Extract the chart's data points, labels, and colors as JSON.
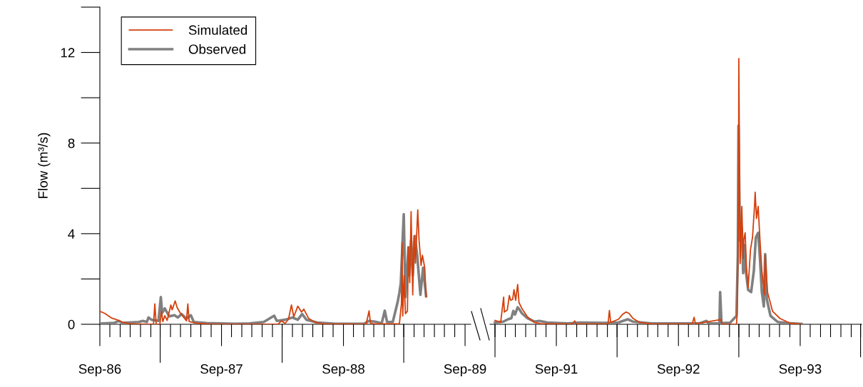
{
  "chart_data": [
    {
      "type": "line",
      "ylabel": "Flow (m³/s)",
      "legend": "top left",
      "grid": false,
      "marker": "none",
      "line_style": "solid",
      "xlim": [
        "1986-09-01",
        "1989-09-18"
      ],
      "ylim": [
        0,
        14
      ],
      "yticks": [
        0,
        4,
        8,
        12
      ],
      "xticks": [
        {
          "value": "1986-09-01",
          "label": "Sep-86"
        },
        {
          "value": "1987-09-01",
          "label": "Sep-87"
        },
        {
          "value": "1988-09-01",
          "label": "Sep-88"
        },
        {
          "value": "1989-09-01",
          "label": "Sep-89"
        }
      ],
      "series": [
        {
          "name": "Simulated",
          "color": "#d4400c",
          "x": [
            "1986-09-01",
            "1986-09-16",
            "1986-10-07",
            "1986-10-19",
            "1986-11-10",
            "1986-12-02",
            "1987-01-22",
            "1987-02-09",
            "1987-02-13",
            "1987-02-17",
            "1987-02-28",
            "1987-03-05",
            "1987-03-09",
            "1987-03-15",
            "1987-03-22",
            "1987-04-02",
            "1987-04-06",
            "1987-04-15",
            "1987-04-21",
            "1987-05-01",
            "1987-05-19",
            "1987-05-23",
            "1987-05-27",
            "1987-06-20",
            "1987-08-02",
            "1988-01-28",
            "1988-02-18",
            "1988-02-28",
            "1988-03-10",
            "1988-03-20",
            "1988-03-29",
            "1988-04-05",
            "1988-04-17",
            "1988-04-28",
            "1988-05-05",
            "1988-05-19",
            "1988-06-08",
            "1988-07-02",
            "1988-11-08",
            "1988-11-17",
            "1988-11-21",
            "1988-11-29",
            "1989-02-16",
            "1989-02-22",
            "1989-02-24",
            "1989-02-26",
            "1989-03-02",
            "1989-03-06",
            "1989-03-12",
            "1989-03-15",
            "1989-03-19",
            "1989-03-23",
            "1989-03-28",
            "1989-04-01",
            "1989-04-05",
            "1989-04-12",
            "1989-04-16",
            "1989-04-22",
            "1989-04-26",
            "1989-05-03",
            "1989-05-07"
          ],
          "values": [
            0.57,
            0.48,
            0.27,
            0.22,
            0.08,
            0.02,
            0,
            0,
            0.9,
            0.01,
            0,
            0.57,
            0.12,
            0.38,
            0.17,
            0.85,
            0.64,
            1.03,
            0.74,
            0.48,
            0.15,
            0.9,
            0.12,
            0.04,
            0,
            0,
            0.01,
            0.15,
            0.04,
            0.22,
            0.85,
            0.33,
            0.8,
            0.54,
            0.67,
            0.27,
            0.08,
            0.02,
            0,
            0.59,
            0.06,
            0.02,
            0.03,
            0.9,
            3.6,
            0.37,
            2.15,
            0.47,
            0.58,
            3.4,
            1.84,
            4.97,
            1.3,
            3.9,
            2.7,
            5.05,
            3.7,
            2.6,
            3.05,
            2.5,
            1.2
          ]
        },
        {
          "name": "Observed",
          "color": "#808080",
          "x": [
            "1986-09-01",
            "1986-10-13",
            "1986-10-28",
            "1986-11-08",
            "1986-12-27",
            "1987-01-08",
            "1987-01-20",
            "1987-01-25",
            "1987-02-03",
            "1987-02-24",
            "1987-03-03",
            "1987-03-07",
            "1987-03-15",
            "1987-03-28",
            "1987-04-13",
            "1987-04-23",
            "1987-05-04",
            "1987-05-19",
            "1987-06-01",
            "1987-06-10",
            "1987-07-18",
            "1987-10-12",
            "1987-11-24",
            "1988-01-06",
            "1988-02-06",
            "1988-02-14",
            "1988-03-10",
            "1988-04-01",
            "1988-04-17",
            "1988-04-30",
            "1988-05-13",
            "1988-06-14",
            "1988-08-08",
            "1988-11-02",
            "1988-11-17",
            "1988-12-04",
            "1988-12-25",
            "1989-01-03",
            "1989-01-10",
            "1989-01-27",
            "1989-02-11",
            "1989-02-16",
            "1989-02-20",
            "1989-03-01",
            "1989-03-06",
            "1989-03-15",
            "1989-03-17",
            "1989-03-23",
            "1989-03-28",
            "1989-04-03",
            "1989-04-10",
            "1989-04-20",
            "1989-04-28",
            "1989-05-07"
          ],
          "values": [
            0.03,
            0.06,
            0.15,
            0.06,
            0.1,
            0.15,
            0.1,
            0.3,
            0.2,
            0.15,
            1.2,
            0.5,
            0.7,
            0.35,
            0.4,
            0.3,
            0.45,
            0.25,
            0.4,
            0.1,
            0.05,
            0.02,
            0.04,
            0.1,
            0.38,
            0.15,
            0.2,
            0.3,
            0.2,
            0.45,
            0.2,
            0.08,
            0.02,
            0.02,
            0.15,
            0.12,
            0.05,
            0.6,
            0.1,
            0.1,
            1.0,
            1.4,
            1.8,
            4.86,
            1.2,
            3.4,
            2.15,
            3.7,
            2.15,
            3.9,
            3.1,
            1.3,
            2.5,
            1.25
          ]
        }
      ]
    },
    {
      "type": "line",
      "tick_labels": "x",
      "legend": false,
      "grid": false,
      "marker": "none",
      "line_style": "solid",
      "xlim": [
        "1991-02-14",
        "1994-03-04"
      ],
      "ylim": [
        0,
        12
      ],
      "yticks": [
        0,
        4,
        8,
        12
      ],
      "xticks": [
        {
          "value": "1991-09-01",
          "label": "Sep-91"
        },
        {
          "value": "1992-09-01",
          "label": "Sep-92"
        },
        {
          "value": "1993-09-01",
          "label": "Sep-93"
        }
      ],
      "series": [
        {
          "color": "#d4400c",
          "x": [
            "1991-03-01",
            "1991-03-12",
            "1991-03-18",
            "1991-03-27",
            "1991-03-29",
            "1991-04-07",
            "1991-04-13",
            "1991-04-17",
            "1991-04-23",
            "1991-04-27",
            "1991-05-02",
            "1991-05-08",
            "1991-05-12",
            "1991-05-21",
            "1991-06-06",
            "1991-06-27",
            "1991-07-18",
            "1991-10-19",
            "1991-10-26",
            "1991-10-30",
            "1992-02-03",
            "1992-02-07",
            "1992-02-11",
            "1992-03-05",
            "1992-03-17",
            "1992-03-28",
            "1992-04-06",
            "1992-04-17",
            "1992-05-08",
            "1992-06-12",
            "1992-10-12",
            "1992-10-18",
            "1992-10-22",
            "1993-01-06",
            "1993-01-10",
            "1993-02-22",
            "1993-02-24",
            "1993-02-28",
            "1993-03-01",
            "1993-03-05",
            "1993-03-10",
            "1993-03-14",
            "1993-03-16",
            "1993-03-20",
            "1993-03-24",
            "1993-03-29",
            "1993-04-05",
            "1993-04-11",
            "1993-04-17",
            "1993-04-19",
            "1993-04-23",
            "1993-04-28",
            "1993-05-03",
            "1993-05-09",
            "1993-05-17",
            "1993-05-19",
            "1993-05-26",
            "1993-06-10",
            "1993-07-02",
            "1993-08-01",
            "1993-09-05"
          ],
          "values": [
            0.17,
            0.12,
            0.08,
            1.2,
            0.54,
            0.64,
            1.27,
            1.06,
            1.1,
            1.53,
            1.06,
            1.76,
            0.96,
            0.69,
            0.33,
            0.08,
            0.02,
            0.01,
            0.15,
            0.02,
            0.01,
            0.61,
            0.08,
            0.22,
            0.43,
            0.54,
            0.48,
            0.27,
            0.08,
            0.02,
            0.01,
            0.31,
            0.02,
            0.21,
            0,
            0,
            0.47,
            4.9,
            11.73,
            2.68,
            5.2,
            2.9,
            3.73,
            4.04,
            2.47,
            1.63,
            3.3,
            3.83,
            5.2,
            5.83,
            4.67,
            5.2,
            3.83,
            2.36,
            1.31,
            3.04,
            1.42,
            0.58,
            0.26,
            0.05,
            0
          ]
        },
        {
          "color": "#808080",
          "x": [
            "1991-03-01",
            "1991-03-27",
            "1991-04-09",
            "1991-04-19",
            "1991-04-25",
            "1991-04-30",
            "1991-05-08",
            "1991-05-14",
            "1991-05-21",
            "1991-06-06",
            "1991-06-27",
            "1991-07-12",
            "1991-08-04",
            "1991-10-07",
            "1991-11-10",
            "1992-01-22",
            "1992-03-05",
            "1992-04-02",
            "1992-04-17",
            "1992-06-12",
            "1992-11-03",
            "1992-11-24",
            "1992-11-30",
            "1993-01-02",
            "1993-01-04",
            "1993-01-08",
            "1993-02-03",
            "1993-02-22",
            "1993-02-26",
            "1993-02-28",
            "1993-03-03",
            "1993-03-05",
            "1993-03-10",
            "1993-03-14",
            "1993-03-18",
            "1993-03-22",
            "1993-03-29",
            "1993-04-07",
            "1993-04-15",
            "1993-04-21",
            "1993-04-28",
            "1993-05-03",
            "1993-05-09",
            "1993-05-15",
            "1993-05-19",
            "1993-05-24",
            "1993-06-04",
            "1993-06-26",
            "1993-07-23",
            "1993-09-05"
          ],
          "values": [
            0.08,
            0.12,
            0.22,
            0.27,
            0.59,
            0.43,
            0.75,
            0.64,
            0.48,
            0.27,
            0.12,
            0.15,
            0.08,
            0.04,
            0.08,
            0.06,
            0.08,
            0.22,
            0.12,
            0.04,
            0.04,
            0.15,
            0.04,
            0.04,
            1.42,
            0.05,
            0.07,
            0.37,
            3.0,
            8.77,
            5.1,
            3.7,
            4.25,
            2.26,
            3.5,
            2.36,
            1.52,
            1.42,
            2.36,
            3.83,
            4.04,
            3.0,
            1.42,
            0.79,
            3.1,
            1.1,
            0.37,
            0.1,
            0.05,
            0.02
          ]
        }
      ]
    }
  ]
}
